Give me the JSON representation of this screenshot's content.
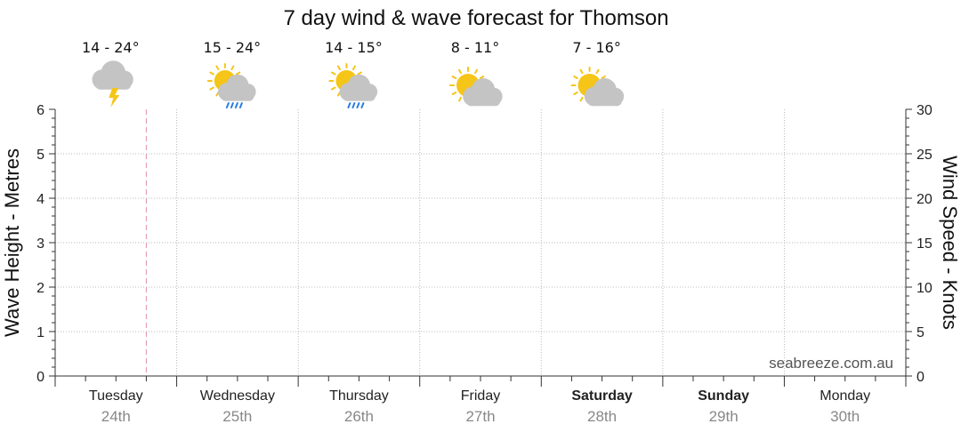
{
  "chart_data": {
    "type": "line",
    "title": "7 day wind & wave forecast for Thomson",
    "ylabel_left": "Wave Height - Metres",
    "ylabel_right": "Wind Speed - Knots",
    "ylim_left": [
      0,
      6
    ],
    "ylim_right": [
      0,
      30
    ],
    "yticks_left": [
      "0",
      "1",
      "2",
      "3",
      "4",
      "5",
      "6"
    ],
    "yticks_right": [
      "0",
      "5",
      "10",
      "15",
      "20",
      "25",
      "30"
    ],
    "grid": true,
    "current_time_marker_day_fraction": 0.75,
    "days": [
      {
        "name": "Tuesday",
        "date": "24th",
        "bold": false,
        "temp": "14 - 24°",
        "icon": "storm-cloud-icon"
      },
      {
        "name": "Wednesday",
        "date": "25th",
        "bold": false,
        "temp": "15 - 24°",
        "icon": "sun-cloud-rain-icon"
      },
      {
        "name": "Thursday",
        "date": "26th",
        "bold": false,
        "temp": "14 - 15°",
        "icon": "sun-cloud-rain-icon"
      },
      {
        "name": "Friday",
        "date": "27th",
        "bold": false,
        "temp": "8 - 11°",
        "icon": "sun-cloud-icon"
      },
      {
        "name": "Saturday",
        "date": "28th",
        "bold": true,
        "temp": "7 - 16°",
        "icon": "sun-cloud-icon"
      },
      {
        "name": "Sunday",
        "date": "29th",
        "bold": true,
        "temp": "",
        "icon": ""
      },
      {
        "name": "Monday",
        "date": "30th",
        "bold": false,
        "temp": "",
        "icon": ""
      }
    ],
    "series": []
  },
  "watermark": "seabreeze.com.au",
  "colors": {
    "grid": "#b8b8b8",
    "now_line": "#e8a0b0",
    "sun": "#f5c518",
    "cloud": "#c4c4c4",
    "rain": "#2a7de1",
    "bolt": "#f5c518"
  }
}
